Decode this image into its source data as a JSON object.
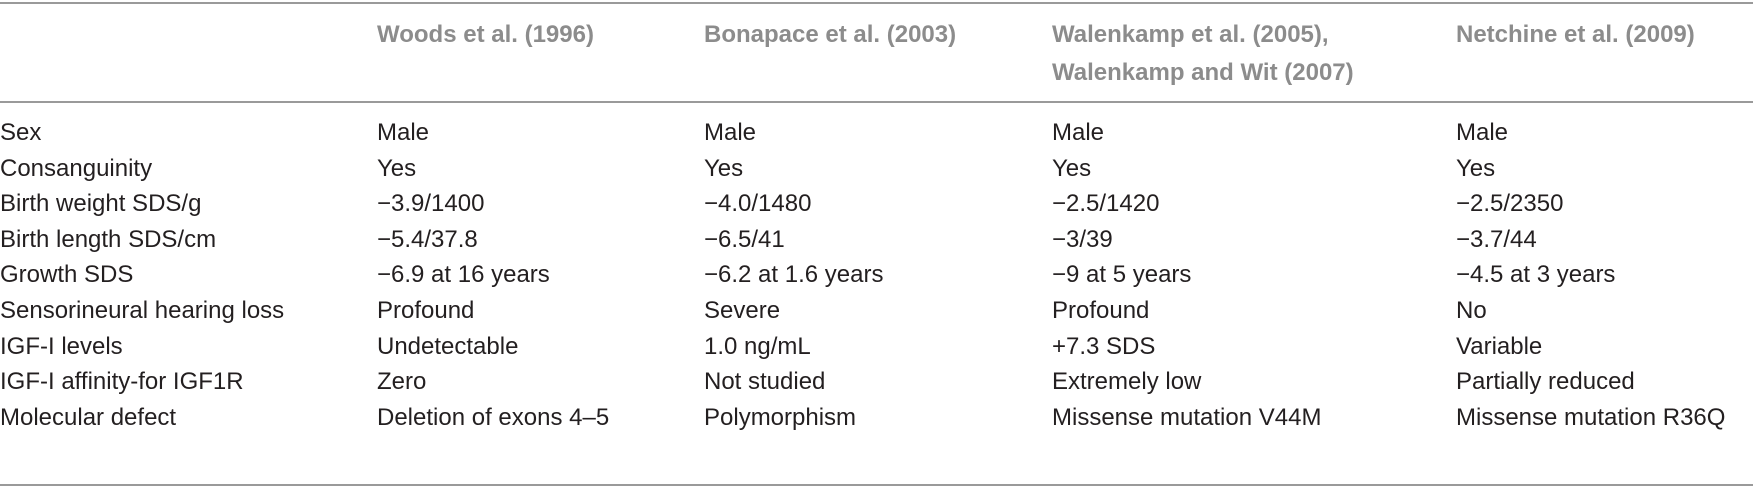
{
  "table": {
    "headers": [
      "",
      "Woods et al. (1996)",
      "Bonapace et al. (2003)",
      "Walenkamp et al. (2005),",
      "Netchine et al. (2009)"
    ],
    "header_line2": "Walenkamp and Wit (2007)",
    "rows": [
      [
        "Sex",
        "Male",
        "Male",
        "Male",
        "Male"
      ],
      [
        "Consanguinity",
        "Yes",
        "Yes",
        "Yes",
        "Yes"
      ],
      [
        "Birth weight SDS/g",
        "−3.9/1400",
        "−4.0/1480",
        "−2.5/1420",
        "−2.5/2350"
      ],
      [
        "Birth length SDS/cm",
        "−5.4/37.8",
        "−6.5/41",
        "−3/39",
        "−3.7/44"
      ],
      [
        "Growth SDS",
        "−6.9 at 16 years",
        "−6.2 at 1.6 years",
        "−9 at 5 years",
        "−4.5 at 3 years"
      ],
      [
        "Sensorineural hearing loss",
        "Profound",
        "Severe",
        "Profound",
        "No"
      ],
      [
        "IGF-I levels",
        "Undetectable",
        "1.0 ng/mL",
        "+7.3 SDS",
        "Variable"
      ],
      [
        "IGF-I affinity-for IGF1R",
        "Zero",
        "Not studied",
        "Extremely low",
        "Partially reduced"
      ],
      [
        "Molecular defect",
        "Deletion of exons 4–5",
        "Polymorphism",
        "Missense mutation V44M",
        "Missense mutation R36Q"
      ]
    ]
  }
}
